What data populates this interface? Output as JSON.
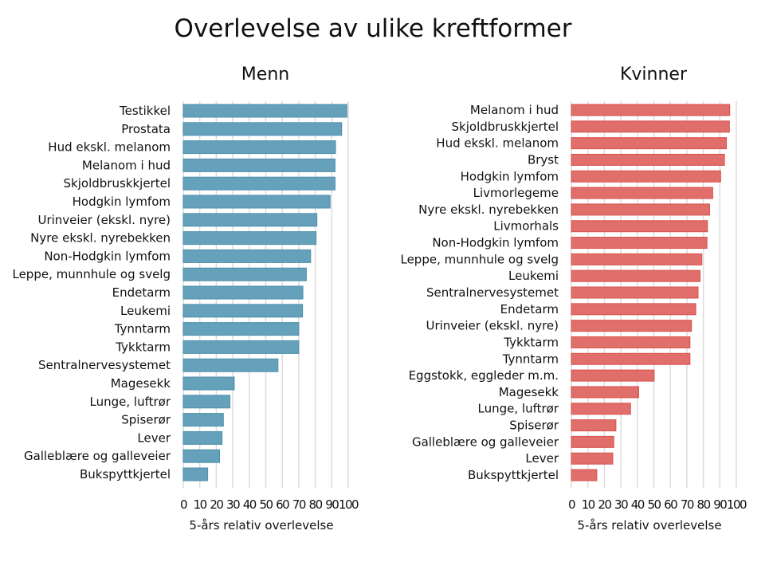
{
  "title": "Overlevelse av ulike kreftformer",
  "chart_data": [
    {
      "type": "bar",
      "orientation": "horizontal",
      "title": "Menn",
      "xlabel": "5-års relativ overlevelse",
      "xlim": [
        0,
        100
      ],
      "xticks": [
        "0",
        "10",
        "20",
        "30",
        "40",
        "50",
        "60",
        "70",
        "80",
        "90",
        "100"
      ],
      "grid": true,
      "color": "#65a1bb",
      "categories": [
        "Testikkel",
        "Prostata",
        "Hud ekskl. melanom",
        "Melanom i hud",
        "Skjoldbruskkjertel",
        "Hodgkin lymfom",
        "Urinveier (ekskl. nyre)",
        "Nyre ekskl. nyrebekken",
        "Non-Hodgkin lymfom",
        "Leppe, munnhule og svelg",
        "Endetarm",
        "Leukemi",
        "Tynntarm",
        "Tykktarm",
        "Sentralnervesystemet",
        "Magesekk",
        "Lunge, luftrør",
        "Spiserør",
        "Lever",
        "Galleblære og galleveier",
        "Bukspyttkjertel"
      ],
      "values": [
        99.2,
        96,
        92.3,
        92,
        92,
        89,
        81,
        80.5,
        77.2,
        74.6,
        72.5,
        72.3,
        70,
        70,
        57.4,
        30.9,
        28.3,
        24.3,
        23.5,
        22,
        14.8
      ]
    },
    {
      "type": "bar",
      "orientation": "horizontal",
      "title": "Kvinner",
      "xlabel": "5-års relativ overlevelse",
      "xlim": [
        0,
        100
      ],
      "xticks": [
        "0",
        "10",
        "20",
        "30",
        "40",
        "50",
        "60",
        "70",
        "80",
        "90",
        "100"
      ],
      "grid": true,
      "color": "#e06e6b",
      "categories": [
        "Melanom i hud",
        "Skjoldbruskkjertel",
        "Hud ekskl. melanom",
        "Bryst",
        "Hodgkin lymfom",
        "Livmorlegeme",
        "Nyre ekskl. nyrebekken",
        "Livmorhals",
        "Non-Hodgkin lymfom",
        "Leppe, munnhule og svelg",
        "Leukemi",
        "Sentralnervesystemet",
        "Endetarm",
        "Urinveier (ekskl. nyre)",
        "Tykktarm",
        "Tynntarm",
        "Eggstokk, eggleder m.m.",
        "Magesekk",
        "Lunge, luftrør",
        "Spiserør",
        "Galleblære og galleveier",
        "Lever",
        "Bukspyttkjertel"
      ],
      "values": [
        96,
        95.8,
        94,
        92.8,
        90.5,
        85.7,
        83.8,
        82.5,
        82.2,
        79.1,
        78,
        76.8,
        75.4,
        72.8,
        71.9,
        71.9,
        50.2,
        40.8,
        35.9,
        27,
        25.7,
        25.1,
        15.4
      ]
    }
  ]
}
